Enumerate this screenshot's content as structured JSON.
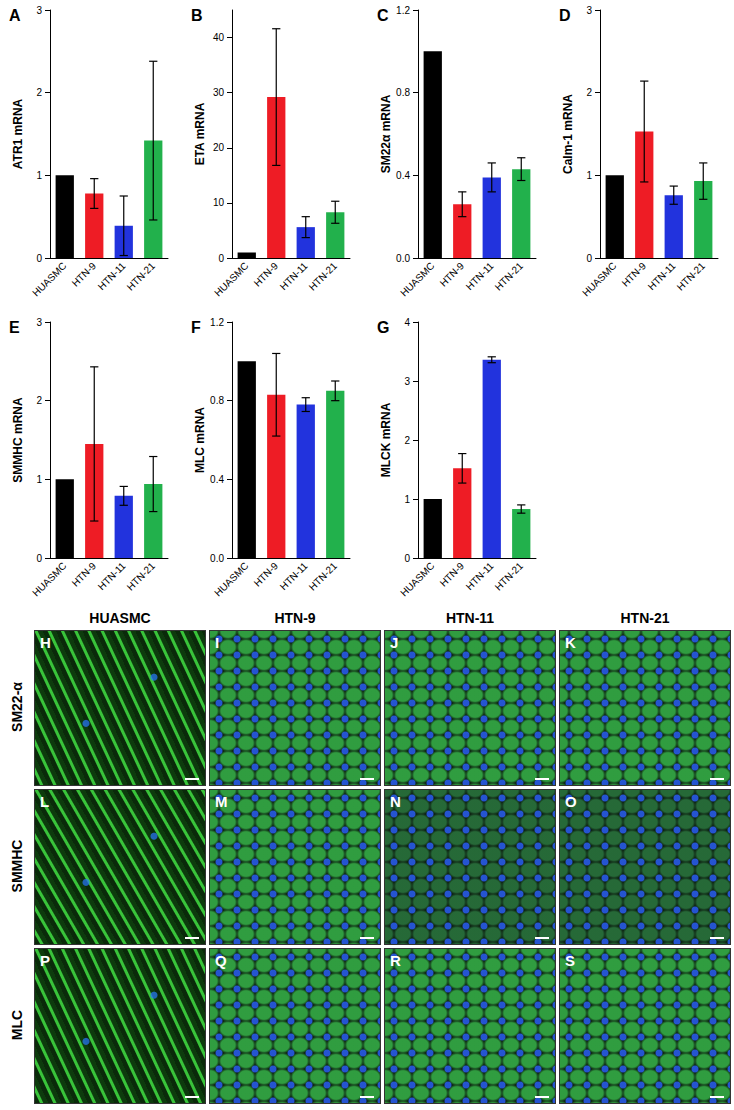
{
  "chart_data": [
    {
      "type": "bar",
      "title": "A",
      "ylabel": "ATR1 mRNA",
      "categories": [
        "HUASMC",
        "HTN-9",
        "HTN-11",
        "HTN-21"
      ],
      "values": [
        1,
        0.78,
        0.39,
        1.42
      ],
      "errors": [
        null,
        0.18,
        0.36,
        0.96
      ],
      "colors": [
        "#000000",
        "#ee1c25",
        "#2233dd",
        "#22b14c"
      ],
      "ylim": [
        0,
        3
      ],
      "yticks": [
        0,
        1,
        2,
        3
      ],
      "grid": false
    },
    {
      "type": "bar",
      "title": "B",
      "ylabel": "ETA mRNA",
      "categories": [
        "HUASMC",
        "HTN-9",
        "HTN-11",
        "HTN-21"
      ],
      "values": [
        1,
        29.2,
        5.6,
        8.3
      ],
      "errors": [
        null,
        12.4,
        1.9,
        2.0
      ],
      "colors": [
        "#000000",
        "#ee1c25",
        "#2233dd",
        "#22b14c"
      ],
      "ylim": [
        0,
        45
      ],
      "yticks": [
        0,
        10,
        20,
        30,
        40
      ],
      "grid": false
    },
    {
      "type": "bar",
      "title": "C",
      "ylabel": "SM22α mRNA",
      "categories": [
        "HUASMC",
        "HTN-9",
        "HTN-11",
        "HTN-21"
      ],
      "values": [
        1,
        0.26,
        0.39,
        0.43
      ],
      "errors": [
        null,
        0.06,
        0.07,
        0.055
      ],
      "colors": [
        "#000000",
        "#ee1c25",
        "#2233dd",
        "#22b14c"
      ],
      "ylim": [
        0,
        1.2
      ],
      "yticks": [
        {
          "value": 0,
          "label": "0.0"
        },
        0.4,
        0.8,
        1.2
      ],
      "grid": false
    },
    {
      "type": "bar",
      "title": "D",
      "ylabel": "Calm-1 mRNA",
      "categories": [
        "HUASMC",
        "HTN-9",
        "HTN-11",
        "HTN-21"
      ],
      "values": [
        1,
        1.53,
        0.76,
        0.93
      ],
      "errors": [
        null,
        0.61,
        0.11,
        0.22
      ],
      "colors": [
        "#000000",
        "#ee1c25",
        "#2233dd",
        "#22b14c"
      ],
      "ylim": [
        0,
        3
      ],
      "yticks": [
        0,
        1,
        2,
        3
      ],
      "grid": false
    },
    {
      "type": "bar",
      "title": "E",
      "ylabel": "SMMHC mRNA",
      "categories": [
        "HUASMC",
        "HTN-9",
        "HTN-11",
        "HTN-21"
      ],
      "values": [
        1,
        1.45,
        0.79,
        0.94
      ],
      "errors": [
        null,
        0.98,
        0.12,
        0.35
      ],
      "colors": [
        "#000000",
        "#ee1c25",
        "#2233dd",
        "#22b14c"
      ],
      "ylim": [
        0,
        3
      ],
      "yticks": [
        0,
        1,
        2,
        3
      ],
      "grid": false
    },
    {
      "type": "bar",
      "title": "F",
      "ylabel": "MLC mRNA",
      "categories": [
        "HUASMC",
        "HTN-9",
        "HTN-11",
        "HTN-21"
      ],
      "values": [
        1,
        0.83,
        0.78,
        0.85
      ],
      "errors": [
        null,
        0.21,
        0.035,
        0.05
      ],
      "colors": [
        "#000000",
        "#ee1c25",
        "#2233dd",
        "#22b14c"
      ],
      "ylim": [
        0,
        1.2
      ],
      "yticks": [
        {
          "value": 0,
          "label": "0.0"
        },
        0.4,
        0.8,
        1.2
      ],
      "grid": false
    },
    {
      "type": "bar",
      "title": "G",
      "ylabel": "MLCK mRNA",
      "categories": [
        "HUASMC",
        "HTN-9",
        "HTN-11",
        "HTN-21"
      ],
      "values": [
        1,
        1.52,
        3.36,
        0.83
      ],
      "errors": [
        null,
        0.25,
        0.05,
        0.07
      ],
      "colors": [
        "#000000",
        "#ee1c25",
        "#2233dd",
        "#22b14c"
      ],
      "ylim": [
        0,
        4
      ],
      "yticks": [
        0,
        1,
        2,
        3,
        4
      ],
      "grid": false
    }
  ],
  "image_panels": {
    "columns": [
      "HUASMC",
      "HTN-9",
      "HTN-11",
      "HTN-21"
    ],
    "rows": [
      {
        "label": "SM22-α",
        "panels": [
          "H",
          "I",
          "J",
          "K"
        ]
      },
      {
        "label": "SMMHC",
        "panels": [
          "L",
          "M",
          "N",
          "O"
        ]
      },
      {
        "label": "MLC",
        "panels": [
          "P",
          "Q",
          "R",
          "S"
        ]
      }
    ]
  }
}
